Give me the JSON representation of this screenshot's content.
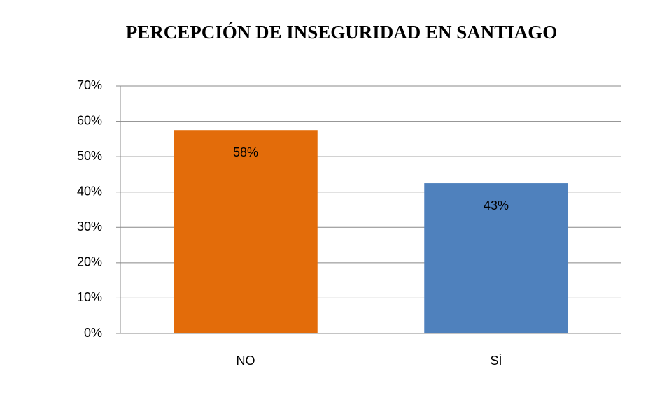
{
  "chart_data": {
    "type": "bar",
    "title": "PERCEPCIÓN DE INSEGURIDAD EN SANTIAGO",
    "categories": [
      "NO",
      "SÍ"
    ],
    "values": [
      57.5,
      42.5
    ],
    "value_labels": [
      "58%",
      "43%"
    ],
    "colors": [
      "#e36c0a",
      "#4f81bd"
    ],
    "ylim": [
      0,
      70
    ],
    "yticks": [
      {
        "value": 0,
        "label": "0%"
      },
      {
        "value": 10,
        "label": "10%"
      },
      {
        "value": 20,
        "label": "20%"
      },
      {
        "value": 30,
        "label": "30%"
      },
      {
        "value": 40,
        "label": "40%"
      },
      {
        "value": 50,
        "label": "50%"
      },
      {
        "value": 60,
        "label": "60%"
      },
      {
        "value": 70,
        "label": "70%"
      }
    ],
    "grid": true
  }
}
